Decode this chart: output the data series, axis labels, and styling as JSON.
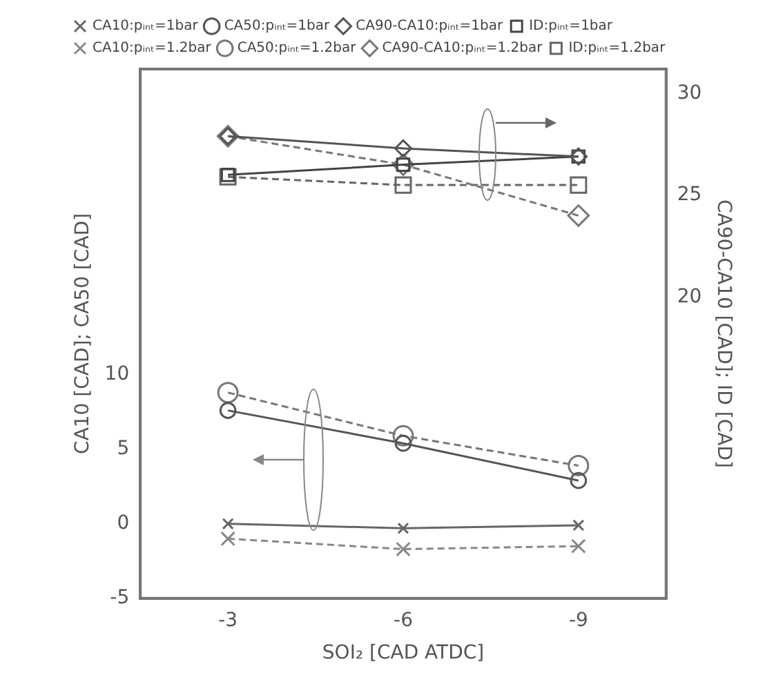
{
  "chart_data": {
    "type": "line",
    "xlabel": "SOI₂ [CAD ATDC]",
    "ylabel": "CA10 [CAD]; CA50 [CAD]",
    "y2label": "CA90-CA10 [CAD]; ID [CAD]",
    "x": [
      -3,
      -6,
      -9
    ],
    "xlim": [
      -1.5,
      -10.5
    ],
    "xticks": [
      -3,
      -6,
      -9
    ],
    "ylim": [
      -5,
      30.5
    ],
    "yticks": [
      -5,
      0,
      5,
      10
    ],
    "y2lim": [
      5.2,
      31.2
    ],
    "y2ticks": [
      20,
      25,
      30
    ],
    "grid": false,
    "legend": "top",
    "series": [
      {
        "name": "CA10:pᵢₙₜ=1bar",
        "color": "#666666",
        "marker": "cross",
        "line_style": "solid",
        "values": [
          0,
          -0.3,
          -0.1
        ]
      },
      {
        "name": "CA50:pᵢₙₜ=1bar",
        "color": "#555555",
        "marker": "circle",
        "line_style": "solid",
        "values": [
          7.6,
          5.4,
          2.9
        ]
      },
      {
        "name": "CA90-CA10:pᵢₙₜ=1bar",
        "color": "#555555",
        "marker": "diamond",
        "line_style": "solid",
        "axis": "y2",
        "values": [
          27.9,
          27.3,
          26.9
        ]
      },
      {
        "name": "ID:pᵢₙₜ=1bar",
        "color": "#444444",
        "marker": "square",
        "line_style": "solid",
        "axis": "y2",
        "values": [
          26,
          26.5,
          26.9
        ]
      },
      {
        "name": "CA10:pᵢₙₜ=1.2bar",
        "color": "#888888",
        "marker": "cross",
        "line_style": "dashed",
        "values": [
          -1,
          -1.7,
          -1.5
        ]
      },
      {
        "name": "CA50:pᵢₙₜ=1.2bar",
        "color": "#777777",
        "marker": "circle",
        "line_style": "dashed",
        "values": [
          8.8,
          5.9,
          3.9
        ]
      },
      {
        "name": "CA90-CA10:pᵢₙₜ=1.2bar",
        "color": "#777777",
        "marker": "diamond",
        "line_style": "dashed",
        "axis": "y2",
        "values": [
          27.9,
          26.5,
          24
        ]
      },
      {
        "name": "ID:pᵢₙₜ=1.2bar",
        "color": "#666666",
        "marker": "square",
        "line_style": "dashed",
        "axis": "y2",
        "values": [
          25.9,
          25.5,
          25.5
        ]
      }
    ]
  }
}
